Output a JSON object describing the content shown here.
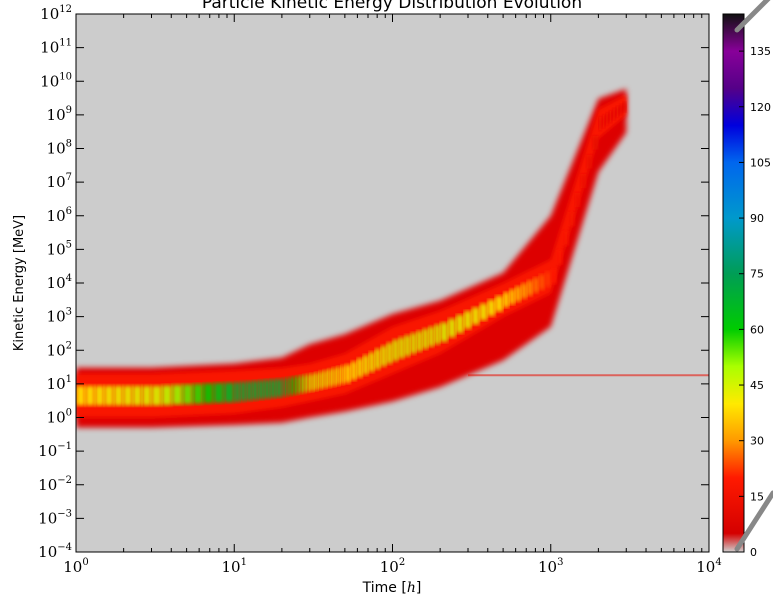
{
  "chart_data": {
    "type": "heatmap",
    "title": "Particle Kinetic Energy Distribution Evolution",
    "xlabel": "Time [$h$]",
    "xlabel_parts": {
      "prefix": "Time [",
      "italic": "h",
      "suffix": "]"
    },
    "ylabel": "Kinetic Energy [MeV]",
    "x_scale": "log",
    "y_scale": "log",
    "xlim": [
      1,
      10000
    ],
    "ylim": [
      0.0001,
      1000000000000
    ],
    "x_ticks": [
      {
        "value": 1,
        "base": "10",
        "exp": "0"
      },
      {
        "value": 10,
        "base": "10",
        "exp": "1"
      },
      {
        "value": 100,
        "base": "10",
        "exp": "2"
      },
      {
        "value": 1000,
        "base": "10",
        "exp": "3"
      },
      {
        "value": 10000,
        "base": "10",
        "exp": "4"
      }
    ],
    "y_ticks": [
      {
        "value": 0.0001,
        "base": "10",
        "exp": "−4"
      },
      {
        "value": 0.001,
        "base": "10",
        "exp": "−3"
      },
      {
        "value": 0.01,
        "base": "10",
        "exp": "−2"
      },
      {
        "value": 0.1,
        "base": "10",
        "exp": "−1"
      },
      {
        "value": 1,
        "base": "10",
        "exp": "0"
      },
      {
        "value": 10,
        "base": "10",
        "exp": "1"
      },
      {
        "value": 100,
        "base": "10",
        "exp": "2"
      },
      {
        "value": 1000,
        "base": "10",
        "exp": "3"
      },
      {
        "value": 10000,
        "base": "10",
        "exp": "4"
      },
      {
        "value": 100000,
        "base": "10",
        "exp": "5"
      },
      {
        "value": 1000000,
        "base": "10",
        "exp": "6"
      },
      {
        "value": 10000000,
        "base": "10",
        "exp": "7"
      },
      {
        "value": 100000000,
        "base": "10",
        "exp": "8"
      },
      {
        "value": 1000000000,
        "base": "10",
        "exp": "9"
      },
      {
        "value": 10000000000,
        "base": "10",
        "exp": "10"
      },
      {
        "value": 100000000000,
        "base": "10",
        "exp": "11"
      },
      {
        "value": 1000000000000,
        "base": "10",
        "exp": "12"
      }
    ],
    "background_color": "#cccccc",
    "colorbar": {
      "range": [
        0,
        145
      ],
      "ticks": [
        0,
        15,
        30,
        45,
        60,
        75,
        90,
        105,
        120,
        135
      ],
      "colormap": "nipy_spectral-like",
      "stops": [
        {
          "v": 0,
          "color": "#d0d0d0"
        },
        {
          "v": 5,
          "color": "#d40000"
        },
        {
          "v": 20,
          "color": "#ff1a00"
        },
        {
          "v": 30,
          "color": "#ff9900"
        },
        {
          "v": 40,
          "color": "#ffea00"
        },
        {
          "v": 50,
          "color": "#aaff00"
        },
        {
          "v": 60,
          "color": "#00cc00"
        },
        {
          "v": 75,
          "color": "#009d55"
        },
        {
          "v": 90,
          "color": "#0099cc"
        },
        {
          "v": 105,
          "color": "#0066ee"
        },
        {
          "v": 115,
          "color": "#0000dd"
        },
        {
          "v": 125,
          "color": "#550088"
        },
        {
          "v": 135,
          "color": "#880099"
        },
        {
          "v": 145,
          "color": "#111111"
        }
      ]
    },
    "density_band": [
      {
        "t": 1,
        "low": 0.5,
        "high": 30,
        "core_low": 1,
        "core_high": 20,
        "peak": 40
      },
      {
        "t": 3,
        "low": 0.5,
        "high": 30,
        "core_low": 1,
        "core_high": 20,
        "peak": 45
      },
      {
        "t": 10,
        "low": 0.6,
        "high": 40,
        "core_low": 1.3,
        "core_high": 25,
        "peak": 70
      },
      {
        "t": 20,
        "low": 0.7,
        "high": 60,
        "core_low": 2,
        "core_high": 30,
        "peak": 70
      },
      {
        "t": 30,
        "low": 1,
        "high": 150,
        "core_low": 3,
        "core_high": 40,
        "peak": 45
      },
      {
        "t": 50,
        "low": 1.5,
        "high": 300,
        "core_low": 5,
        "core_high": 80,
        "peak": 40
      },
      {
        "t": 100,
        "low": 3,
        "high": 1200,
        "core_low": 20,
        "core_high": 500,
        "peak": 45
      },
      {
        "t": 200,
        "low": 8,
        "high": 3000,
        "core_low": 80,
        "core_high": 1500,
        "peak": 45
      },
      {
        "t": 500,
        "low": 50,
        "high": 20000,
        "core_low": 1000,
        "core_high": 10000,
        "peak": 40
      },
      {
        "t": 1000,
        "low": 500,
        "high": 1000000,
        "core_low": 5000,
        "core_high": 50000,
        "peak": 20
      },
      {
        "t": 2000,
        "low": 20000000,
        "high": 3000000000,
        "core_low": 200000000,
        "core_high": 1500000000,
        "peak": 10
      },
      {
        "t": 3000,
        "low": 300000000,
        "high": 6000000000,
        "core_low": 1000000000,
        "core_high": 4000000000,
        "peak": 8
      }
    ],
    "flat_line": {
      "value": 18,
      "t_start": 300,
      "t_end": 10000
    }
  }
}
